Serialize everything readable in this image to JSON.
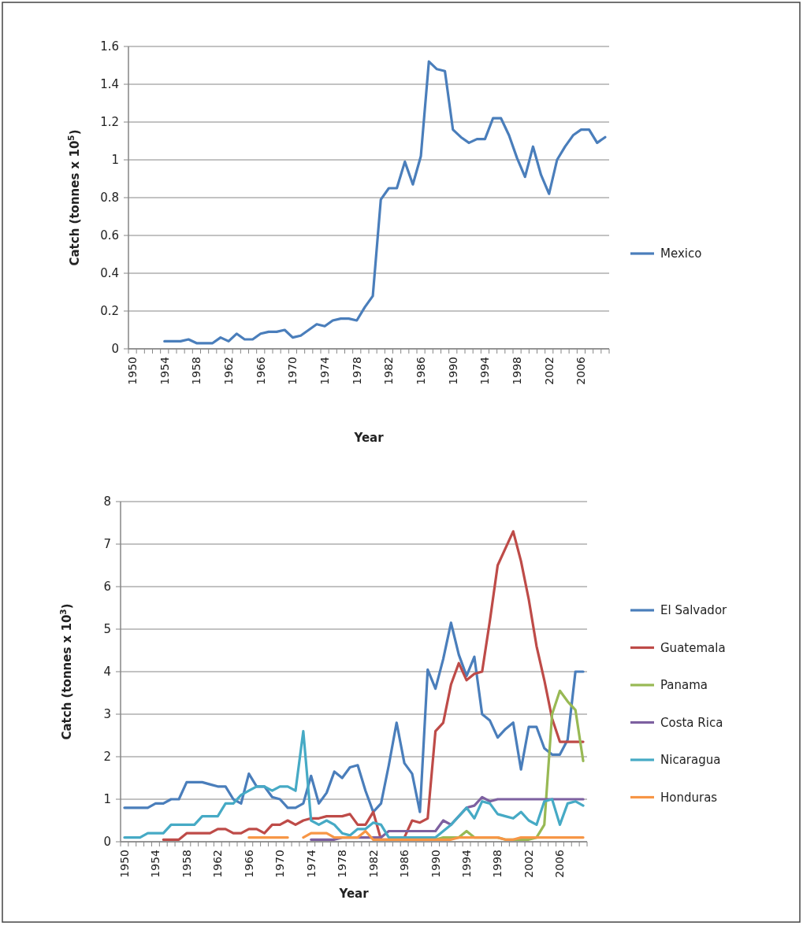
{
  "chart_data": [
    {
      "type": "line",
      "xlabel": "Year",
      "ylabel": "Catch (tonnes x 10$^{5}$)",
      "categories": [
        "1950",
        null,
        null,
        null,
        "1954",
        null,
        null,
        null,
        "1958",
        null,
        null,
        null,
        "1962",
        null,
        null,
        null,
        "1966",
        null,
        null,
        null,
        "1970",
        null,
        null,
        null,
        "1974",
        null,
        null,
        null,
        "1978",
        null,
        null,
        null,
        "1982",
        null,
        null,
        null,
        "1986",
        null,
        null,
        null,
        "1990",
        null,
        null,
        null,
        "1994",
        null,
        null,
        null,
        "1998",
        null,
        null,
        null,
        "2002",
        null,
        null,
        null,
        "2006",
        null,
        null,
        null
      ],
      "ylim": [
        0,
        1.6
      ],
      "yticks": [
        0,
        0.2,
        0.4,
        0.6,
        0.8,
        1,
        1.2,
        1.4,
        1.6
      ],
      "grid": "y",
      "legend": "right",
      "series": [
        {
          "name": "Mexico",
          "color": "#4a7ebb",
          "values": [
            null,
            null,
            null,
            null,
            0.04,
            0.04,
            0.04,
            0.05,
            0.03,
            0.03,
            0.03,
            0.06,
            0.04,
            0.08,
            0.05,
            0.05,
            0.08,
            0.09,
            0.09,
            0.1,
            0.06,
            0.07,
            0.1,
            0.13,
            0.12,
            0.15,
            0.16,
            0.16,
            0.15,
            0.22,
            0.28,
            0.79,
            0.85,
            0.85,
            0.99,
            0.87,
            1.02,
            1.52,
            1.48,
            1.47,
            1.16,
            1.12,
            1.09,
            1.11,
            1.11,
            1.22,
            1.22,
            1.13,
            1.01,
            0.91,
            1.07,
            0.92,
            0.82,
            1.0,
            1.07,
            1.13,
            1.16,
            1.16,
            1.09,
            1.12
          ]
        }
      ]
    },
    {
      "type": "line",
      "xlabel": "Year",
      "ylabel": "Catch (tonnes x 10$^{3}$)",
      "categories": [
        "1950",
        null,
        null,
        null,
        "1954",
        null,
        null,
        null,
        "1958",
        null,
        null,
        null,
        "1962",
        null,
        null,
        null,
        "1966",
        null,
        null,
        null,
        "1970",
        null,
        null,
        null,
        "1974",
        null,
        null,
        null,
        "1978",
        null,
        null,
        null,
        "1982",
        null,
        null,
        null,
        "1986",
        null,
        null,
        null,
        "1990",
        null,
        null,
        null,
        "1994",
        null,
        null,
        null,
        "1998",
        null,
        null,
        null,
        "2002",
        null,
        null,
        null,
        "2006",
        null,
        null,
        null
      ],
      "ylim": [
        0,
        8
      ],
      "yticks": [
        0,
        1,
        2,
        3,
        4,
        5,
        6,
        7,
        8
      ],
      "grid": "y",
      "legend": "right",
      "series": [
        {
          "name": "El Salvador",
          "color": "#4a7ebb",
          "values": [
            0.8,
            0.8,
            0.8,
            0.8,
            0.9,
            0.9,
            1.0,
            1.0,
            1.4,
            1.4,
            1.4,
            1.35,
            1.3,
            1.3,
            1.0,
            0.9,
            1.6,
            1.3,
            1.3,
            1.05,
            1.0,
            0.8,
            0.8,
            0.9,
            1.55,
            0.9,
            1.15,
            1.65,
            1.5,
            1.75,
            1.8,
            1.2,
            0.7,
            0.9,
            1.8,
            2.8,
            1.85,
            1.6,
            0.7,
            4.05,
            3.6,
            4.3,
            5.15,
            4.4,
            3.9,
            4.35,
            3.0,
            2.85,
            2.45,
            2.65,
            2.8,
            1.7,
            2.7,
            2.7,
            2.2,
            2.05,
            2.05,
            2.4,
            4.0,
            4.0
          ]
        },
        {
          "name": "Guatemala",
          "color": "#be4b48",
          "values": [
            null,
            null,
            null,
            null,
            null,
            0.05,
            0.05,
            0.05,
            0.2,
            0.2,
            0.2,
            0.2,
            0.3,
            0.3,
            0.2,
            0.2,
            0.3,
            0.3,
            0.2,
            0.4,
            0.4,
            0.5,
            0.4,
            0.5,
            0.55,
            0.55,
            0.6,
            0.6,
            0.6,
            0.65,
            0.4,
            0.4,
            0.7,
            0.05,
            0.05,
            0.1,
            0.1,
            0.5,
            0.45,
            0.55,
            2.6,
            2.8,
            3.7,
            4.2,
            3.8,
            3.95,
            4.0,
            5.2,
            6.5,
            6.9,
            7.3,
            6.6,
            5.7,
            4.6,
            3.8,
            2.9,
            2.35,
            2.35,
            2.35,
            2.35
          ]
        },
        {
          "name": "Panama",
          "color": "#98b954",
          "values": [
            null,
            null,
            null,
            null,
            null,
            null,
            null,
            null,
            null,
            null,
            null,
            null,
            null,
            null,
            null,
            null,
            null,
            null,
            null,
            null,
            null,
            null,
            null,
            null,
            null,
            null,
            null,
            null,
            null,
            null,
            null,
            null,
            null,
            null,
            null,
            null,
            null,
            null,
            0.05,
            0.05,
            0.05,
            0.1,
            0.1,
            0.1,
            0.25,
            0.1,
            0.1,
            0.1,
            0.1,
            0.05,
            0.05,
            0.05,
            0.05,
            0.1,
            0.4,
            3.0,
            3.55,
            3.3,
            3.1,
            1.9
          ]
        },
        {
          "name": "Costa Rica",
          "color": "#7d60a0",
          "values": [
            null,
            null,
            null,
            null,
            null,
            null,
            null,
            null,
            null,
            null,
            null,
            null,
            null,
            null,
            null,
            null,
            null,
            null,
            null,
            null,
            null,
            null,
            null,
            null,
            0.05,
            0.05,
            0.05,
            0.05,
            0.1,
            0.1,
            0.1,
            0.1,
            0.1,
            0.1,
            0.25,
            0.25,
            0.25,
            0.25,
            0.25,
            0.25,
            0.25,
            0.5,
            0.4,
            0.6,
            0.8,
            0.85,
            1.05,
            0.95,
            1.0,
            1.0,
            1.0,
            1.0,
            1.0,
            1.0,
            1.0,
            1.0,
            1.0,
            1.0,
            1.0,
            1.0
          ]
        },
        {
          "name": "Nicaragua",
          "color": "#46aac5",
          "values": [
            0.1,
            0.1,
            0.1,
            0.2,
            0.2,
            0.2,
            0.4,
            0.4,
            0.4,
            0.4,
            0.6,
            0.6,
            0.6,
            0.9,
            0.9,
            1.1,
            1.2,
            1.3,
            1.3,
            1.2,
            1.3,
            1.3,
            1.2,
            2.6,
            0.5,
            0.4,
            0.5,
            0.4,
            0.2,
            0.15,
            0.3,
            0.3,
            0.45,
            0.4,
            0.1,
            0.1,
            0.1,
            0.1,
            0.1,
            0.1,
            0.1,
            0.25,
            0.4,
            0.6,
            0.8,
            0.55,
            0.95,
            0.9,
            0.65,
            0.6,
            0.55,
            0.7,
            0.5,
            0.4,
            0.95,
            1.0,
            0.4,
            0.9,
            0.95,
            0.85
          ]
        },
        {
          "name": "Honduras",
          "color": "#f79646",
          "values": [
            null,
            null,
            null,
            null,
            null,
            null,
            null,
            null,
            null,
            null,
            null,
            null,
            null,
            null,
            null,
            null,
            0.1,
            0.1,
            0.1,
            0.1,
            0.1,
            0.1,
            null,
            0.1,
            0.2,
            0.2,
            0.2,
            0.1,
            0.1,
            0.1,
            0.1,
            0.25,
            0.05,
            0.05,
            0.05,
            0.05,
            0.05,
            0.05,
            0.05,
            0.05,
            0.05,
            0.05,
            0.05,
            0.1,
            0.1,
            0.1,
            0.1,
            0.1,
            0.1,
            0.05,
            0.05,
            0.1,
            0.1,
            0.1,
            0.1,
            0.1,
            0.1,
            0.1,
            0.1,
            0.1
          ]
        }
      ]
    }
  ]
}
